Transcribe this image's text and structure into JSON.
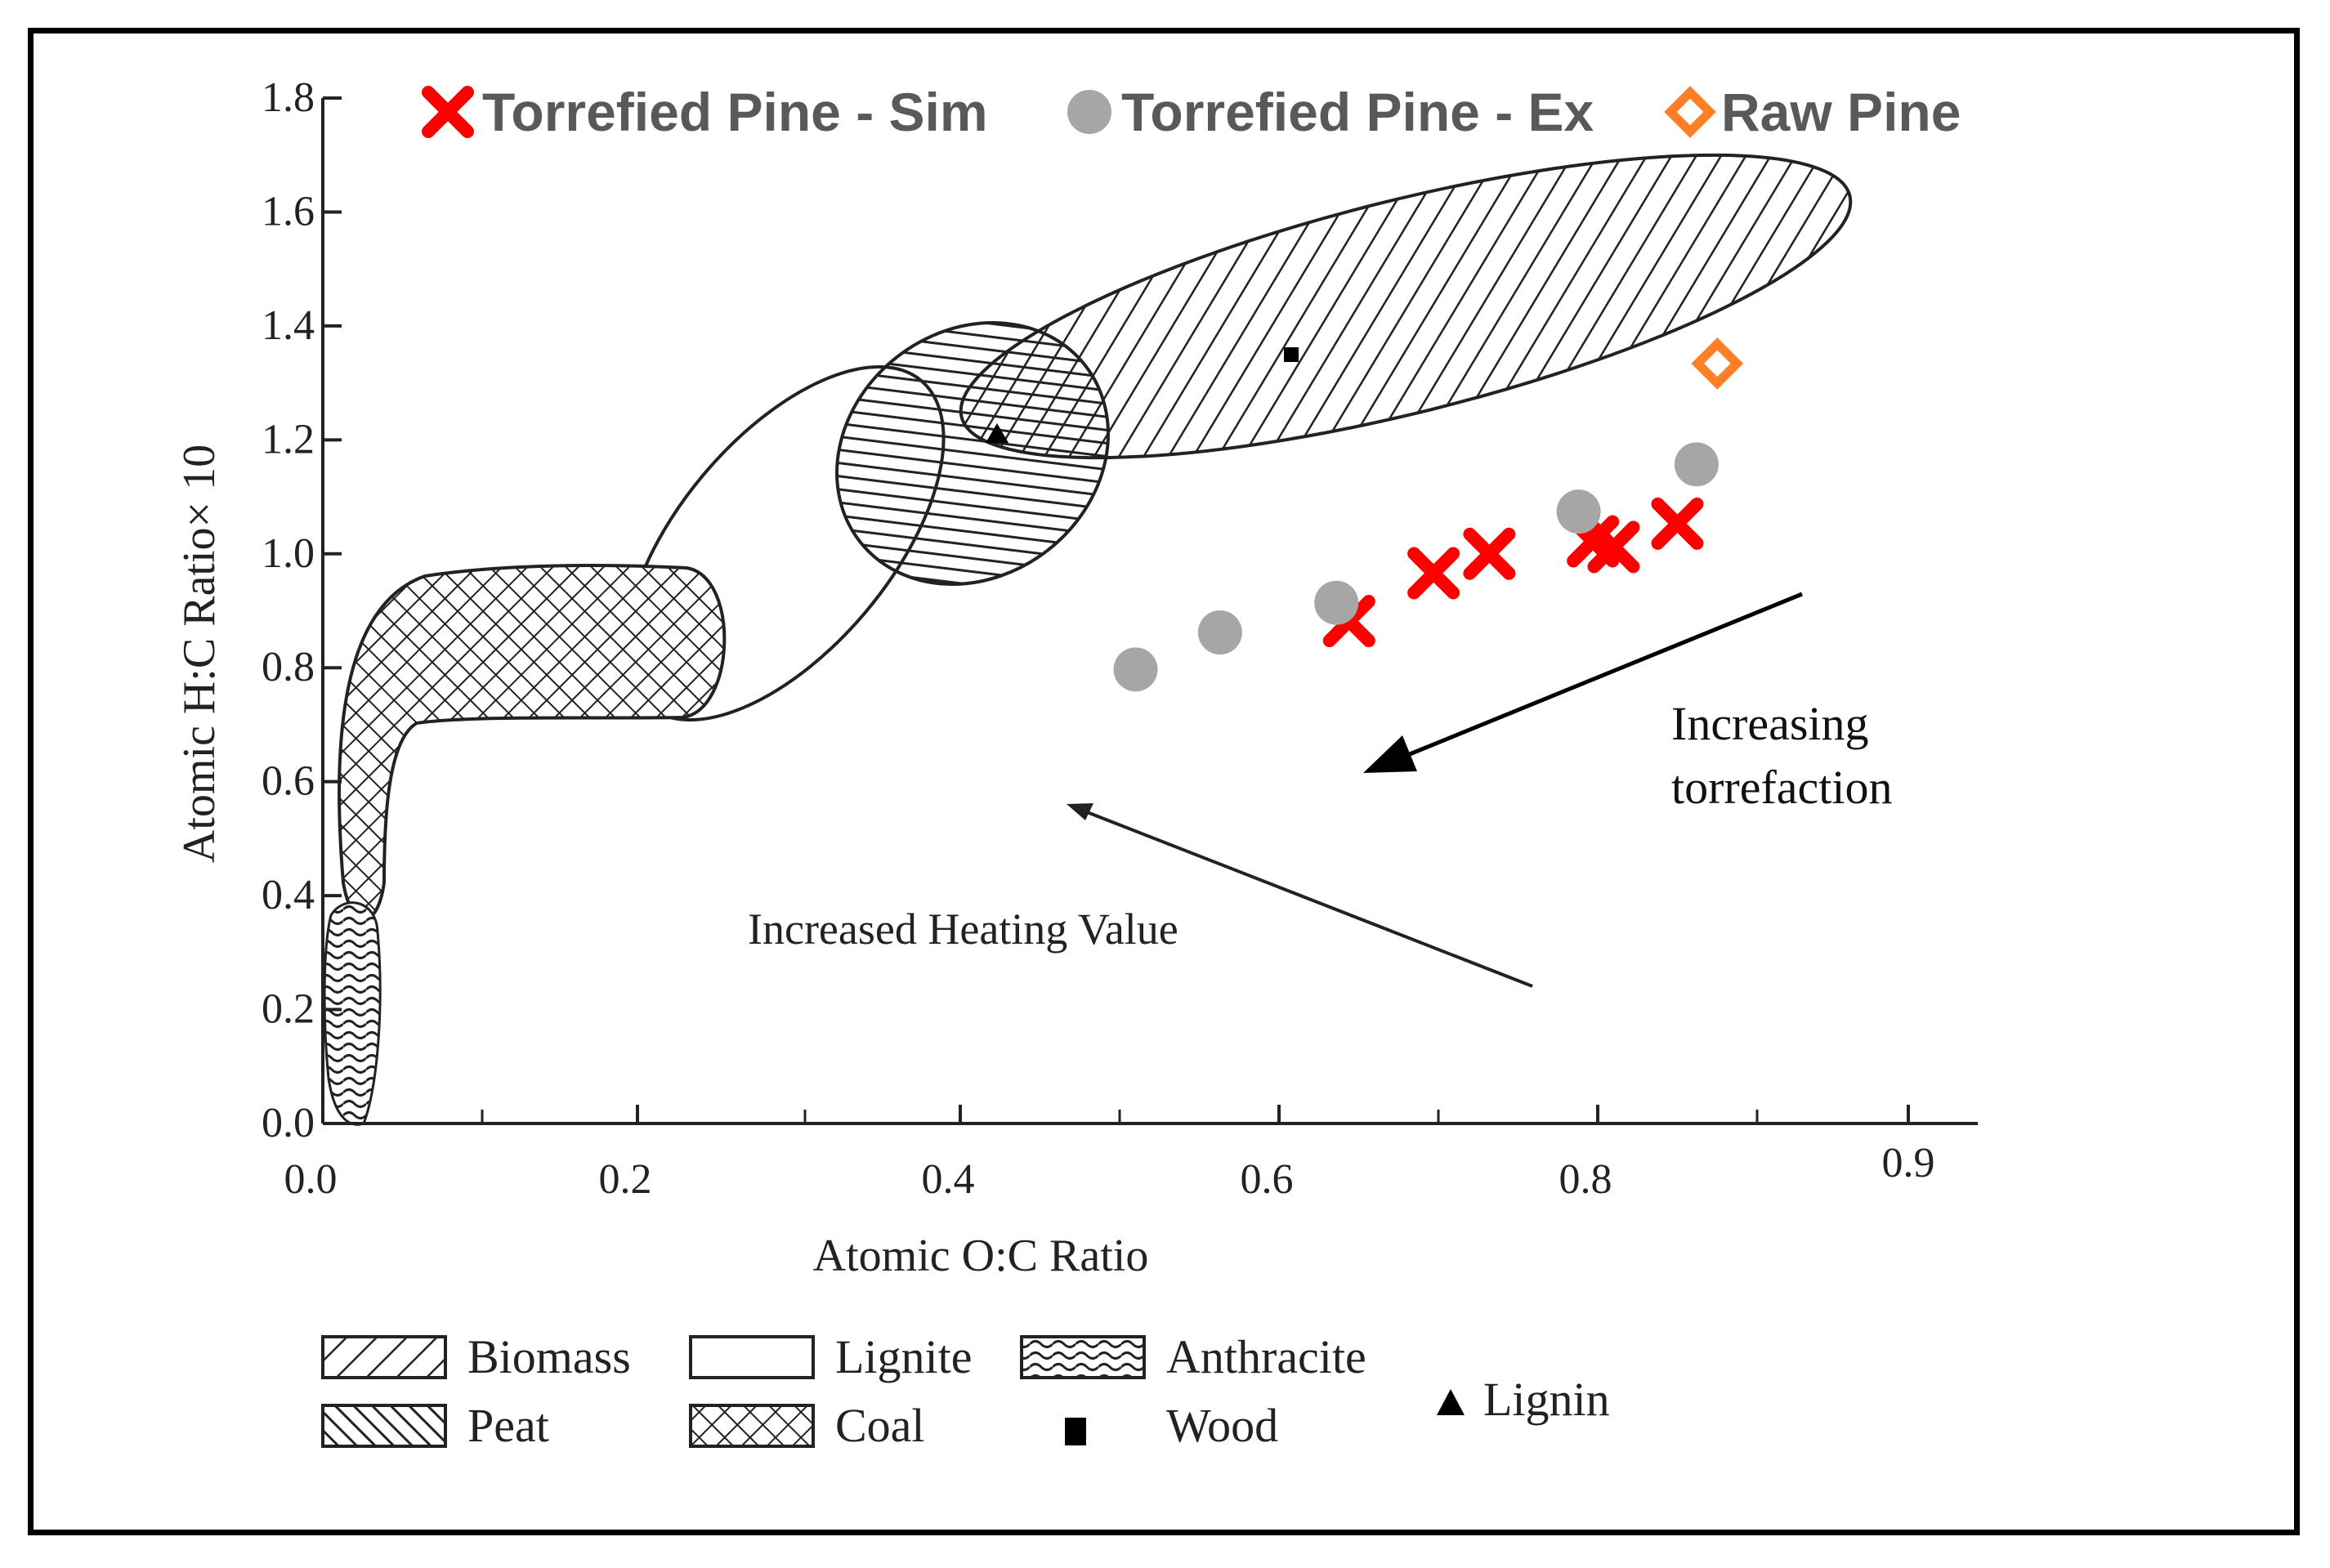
{
  "chart_data": {
    "type": "scatter",
    "title": "",
    "xlabel": "Atomic O:C Ratio",
    "ylabel": "Atomic H:C Ratio× 10",
    "xlim": [
      0.0,
      1.0
    ],
    "ylim": [
      0.0,
      1.8
    ],
    "x_ticks": [
      "0.0",
      "0.2",
      "0.4",
      "0.6",
      "0.8",
      "0.9"
    ],
    "y_ticks": [
      "0.0",
      "0.2",
      "0.4",
      "0.6",
      "0.8",
      "1.0",
      "1.2",
      "1.4",
      "1.6",
      "1.8"
    ],
    "series": [
      {
        "name": "Torrefied Pine - Sim",
        "marker": "x",
        "color": "#ff0000",
        "points": [
          [
            0.644,
            0.882
          ],
          [
            0.697,
            0.966
          ],
          [
            0.732,
            1.0
          ],
          [
            0.797,
            1.022
          ],
          [
            0.81,
            1.012
          ],
          [
            0.85,
            1.053
          ]
        ]
      },
      {
        "name": "Torrefied Pine - Ex",
        "marker": "circle",
        "color": "#a6a6a6",
        "points": [
          [
            0.51,
            0.797
          ],
          [
            0.563,
            0.862
          ],
          [
            0.636,
            0.914
          ],
          [
            0.788,
            1.074
          ],
          [
            0.862,
            1.157
          ]
        ]
      },
      {
        "name": "Raw Pine",
        "marker": "diamond",
        "color": "#ff7f27",
        "points": [
          [
            0.875,
            1.334
          ]
        ]
      }
    ],
    "regions": [
      "Biomass",
      "Peat",
      "Lignite",
      "Coal",
      "Anthracite",
      "Wood",
      "Lignin"
    ],
    "annotations": {
      "heating": "Increased Heating Value",
      "torrefaction_line1": "Increasing",
      "torrefaction_line2": "torrefaction"
    },
    "legend_placement": "top"
  },
  "legend_bottom": {
    "biomass": "Biomass",
    "peat": "Peat",
    "lignite": "Lignite",
    "coal": "Coal",
    "anthracite": "Anthracite",
    "wood": "Wood",
    "lignin": "Lignin"
  },
  "colors": {
    "sim": "#ff0000",
    "ex": "#a6a6a6",
    "raw": "#ff7f27",
    "legend_text": "#595959"
  }
}
